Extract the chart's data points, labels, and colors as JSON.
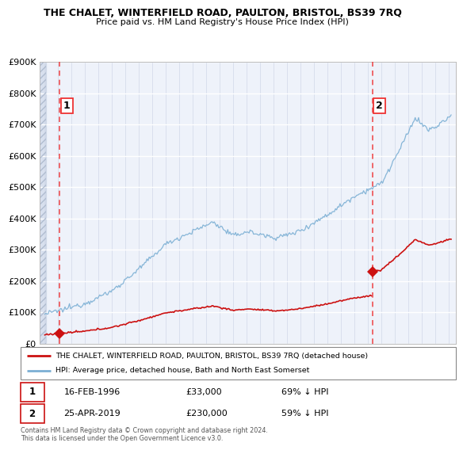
{
  "title": "THE CHALET, WINTERFIELD ROAD, PAULTON, BRISTOL, BS39 7RQ",
  "subtitle": "Price paid vs. HM Land Registry's House Price Index (HPI)",
  "legend_line1": "THE CHALET, WINTERFIELD ROAD, PAULTON, BRISTOL, BS39 7RQ (detached house)",
  "legend_line2": "HPI: Average price, detached house, Bath and North East Somerset",
  "sale1_date": "16-FEB-1996",
  "sale1_price": 33000,
  "sale1_hpi": "69% ↓ HPI",
  "sale2_date": "25-APR-2019",
  "sale2_price": 230000,
  "sale2_hpi": "59% ↓ HPI",
  "footnote": "Contains HM Land Registry data © Crown copyright and database right 2024.\nThis data is licensed under the Open Government Licence v3.0.",
  "hpi_color": "#7bafd4",
  "price_color": "#cc1111",
  "marker_color": "#cc1111",
  "vline_color": "#ee3333",
  "ylim": [
    0,
    900000
  ],
  "sale1_x": 1996.12,
  "sale2_x": 2019.32,
  "xmin": 1994.6,
  "xmax": 2025.5,
  "hatch_end": 1995.1
}
